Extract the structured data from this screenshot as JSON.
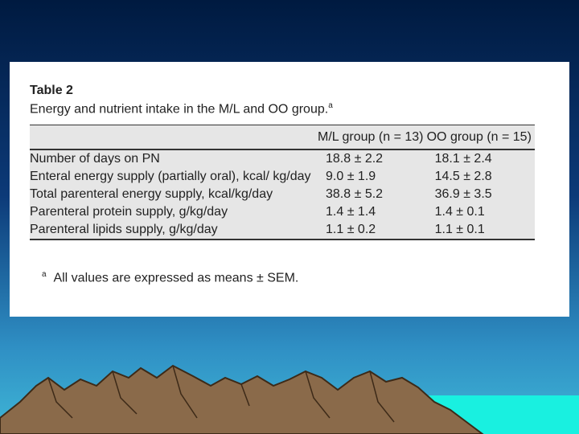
{
  "table": {
    "title": "Table 2",
    "caption": "Energy and nutrient intake in the M/L and OO group.",
    "caption_note": "a",
    "header": [
      "M/L group (n = 13)",
      "OO group (n = 15)"
    ],
    "rows": [
      [
        "Number of days on PN",
        "18.8 ± 2.2",
        "18.1 ± 2.4"
      ],
      [
        "Enteral energy supply (partially oral), kcal/ kg/day",
        "9.0 ± 1.9",
        "14.5 ± 2.8"
      ],
      [
        "Total parenteral energy supply, kcal/kg/day",
        "38.8 ± 5.2",
        "36.9 ± 3.5"
      ],
      [
        "Parenteral protein supply, g/kg/day",
        "1.4 ± 1.4",
        "1.4 ± 0.1"
      ],
      [
        "Parenteral lipids supply, g/kg/day",
        "1.1 ± 0.2",
        "1.1 ± 0.1"
      ]
    ],
    "footnote": {
      "mark": "a",
      "text": "All values are expressed as means ± SEM."
    }
  }
}
